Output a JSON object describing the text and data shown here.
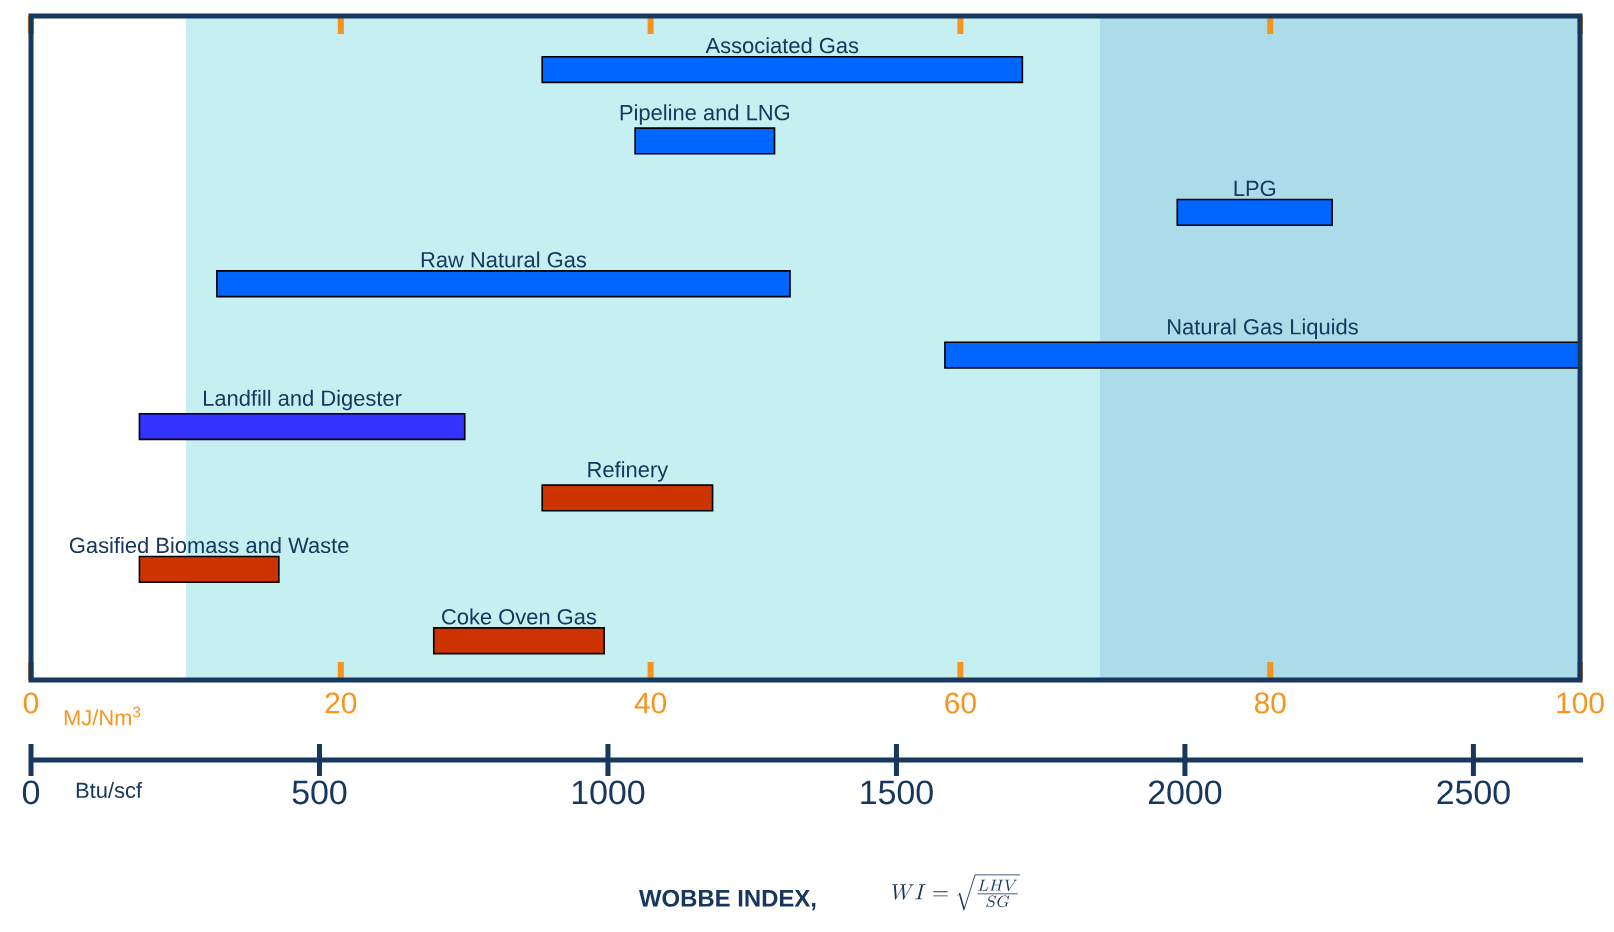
{
  "chart_data": {
    "type": "bar",
    "orientation": "horizontal",
    "categories": [
      null,
      null,
      null,
      null,
      null,
      null,
      null,
      null,
      null
    ],
    "values": [
      31,
      9,
      10,
      37,
      41,
      21,
      11,
      9,
      11
    ],
    "base": [
      33,
      39,
      74,
      12,
      59,
      7,
      33,
      7,
      26
    ],
    "colors": [
      "#0066ff",
      "#0066ff",
      "#0066ff",
      "#0066ff",
      "#0066ff",
      "#3333ff",
      "#cc3300",
      "#cc3300",
      "#cc3300"
    ],
    "xlim": [
      0,
      100
    ],
    "xticks": [
      0,
      20,
      40,
      60,
      80,
      100
    ],
    "xlabel": "MJ/Nm$^{3}$",
    "x2lim": [
      0,
      2690
    ],
    "x2ticks": [
      0,
      500,
      1000,
      1500,
      2000,
      2500
    ],
    "x2label": "Btu/scf",
    "bands": [
      {
        "axis": "x",
        "from": 10,
        "to": 69,
        "color": "#c5eff0"
      },
      {
        "axis": "x",
        "from": 69,
        "to": 100,
        "color": "#acdcea"
      }
    ],
    "annotations": [
      "Associated Gas",
      "Pipeline and LNG",
      "LPG",
      "Raw Natural Gas",
      "Natural Gas Liquids",
      "Landfill and Digester",
      "Refinery",
      "Gasified Biomass and Waste",
      "Coke Oven Gas",
      "WOBBE INDEX,",
      "WI=\\sqrt{\\frac{LHV}{SG}}"
    ]
  }
}
